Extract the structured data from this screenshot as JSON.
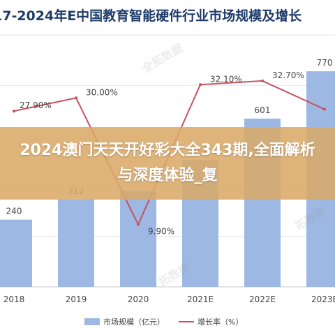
{
  "chart_data": {
    "type": "bar",
    "title": "17-2024年E中国教育智能硬件行业市场规模及增长",
    "categories": [
      "2018",
      "2019",
      "2020",
      "2021E",
      "2022E",
      "2023E"
    ],
    "series": [
      {
        "name": "市场规模（亿元）",
        "type": "bar",
        "values": [
          240,
          312,
          343,
          453,
          601,
          770
        ],
        "labels": [
          "240",
          "312",
          "",
          "453",
          "601",
          "770"
        ],
        "color": "#9db8e3"
      },
      {
        "name": "增长率（%）",
        "type": "line",
        "values": [
          27.9,
          30.0,
          9.9,
          32.1,
          32.7,
          28.2
        ],
        "labels": [
          "27.90%",
          "30.00%",
          "9.90%",
          "32.10%",
          "32.70%",
          ""
        ],
        "color": "#c9505c"
      }
    ],
    "ylim": [
      0,
      900
    ],
    "y2lim": [
      0,
      40
    ],
    "grid": true,
    "legend": "bottom"
  },
  "overlay": {
    "text": "2024澳门天天开好彩大全343期,全面解析与深度体验_复"
  },
  "watermarks": [
    "全拓数据",
    "拓数据",
    "拓数据"
  ]
}
